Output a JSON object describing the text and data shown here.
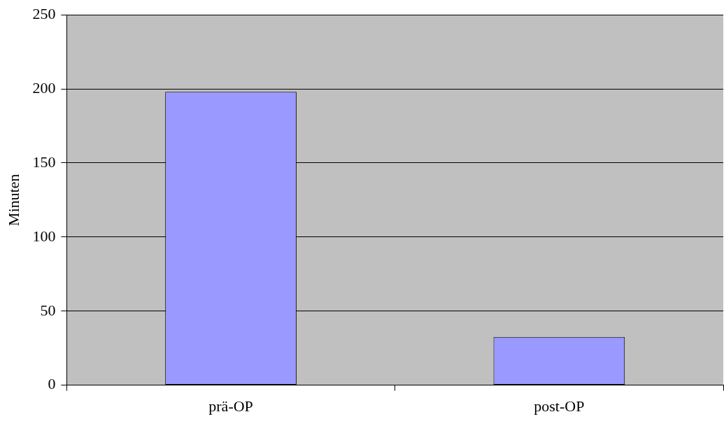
{
  "chart_data": {
    "type": "bar",
    "ylabel": "Minuten",
    "categories": [
      "prä-OP",
      "post-OP"
    ],
    "values": [
      198,
      32.5
    ],
    "color": "#9999ff",
    "ylim": [
      0,
      250
    ],
    "yticks": [
      0,
      50,
      100,
      150,
      200,
      250
    ],
    "grid": "y",
    "legend": false
  }
}
